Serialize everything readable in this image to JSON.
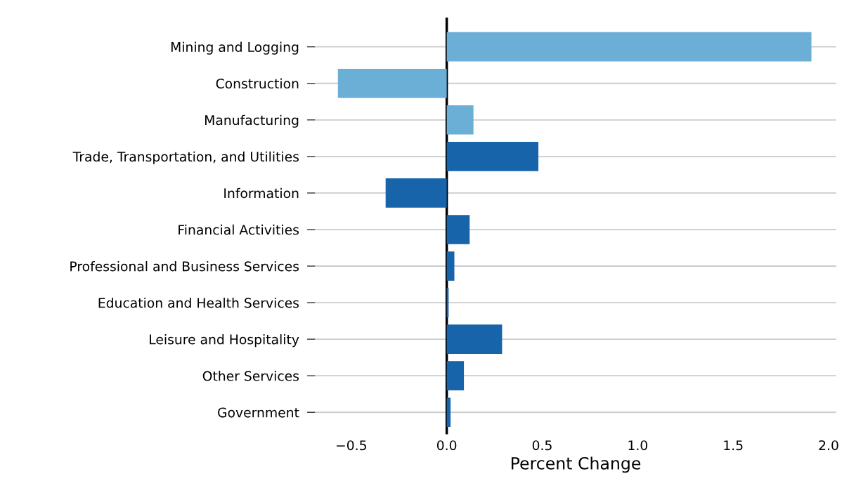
{
  "chart_data": {
    "type": "bar",
    "orientation": "horizontal",
    "xlabel": "Percent Change",
    "categories": [
      "Mining and Logging",
      "Construction",
      "Manufacturing",
      "Trade, Transportation, and Utilities",
      "Information",
      "Financial Activities",
      "Professional and Business Services",
      "Education and Health Services",
      "Leisure and Hospitality",
      "Other Services",
      "Government"
    ],
    "values": [
      1.91,
      -0.57,
      0.14,
      0.48,
      -0.32,
      0.12,
      0.04,
      0.01,
      0.29,
      0.09,
      0.02
    ],
    "colors": [
      "#6baed6",
      "#6baed6",
      "#6baed6",
      "#1764ab",
      "#1764ab",
      "#1764ab",
      "#1764ab",
      "#1764ab",
      "#1764ab",
      "#1764ab",
      "#1764ab"
    ],
    "xlim": [
      -0.69,
      2.04
    ],
    "xticks": [
      {
        "value": -0.5,
        "label": "−0.5"
      },
      {
        "value": 0.0,
        "label": "0.0"
      },
      {
        "value": 0.5,
        "label": "0.5"
      },
      {
        "value": 1.0,
        "label": "1.0"
      },
      {
        "value": 1.5,
        "label": "1.5"
      },
      {
        "value": 2.0,
        "label": "2.0"
      }
    ],
    "grid": "y",
    "ref_lines": [
      {
        "axis": "x",
        "value": 0,
        "color": "#000000"
      }
    ]
  }
}
